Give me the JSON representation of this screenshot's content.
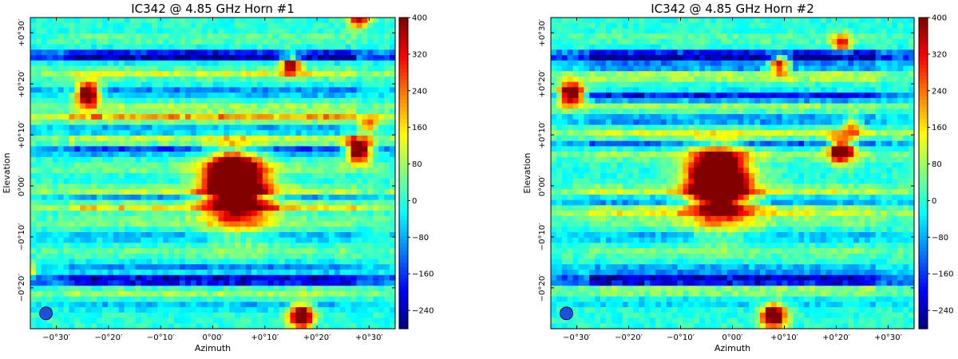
{
  "chart_data": [
    {
      "type": "heatmap",
      "title": "IC342 @ 4.85 GHz  Horn #1",
      "xlabel": "Azimuth",
      "ylabel": "Elevation",
      "x_ticks": [
        "−0°30′",
        "−0°20′",
        "−0°10′",
        "0°00′",
        "+0°10′",
        "+0°20′",
        "+0°30′"
      ],
      "x_tick_values": [
        -30,
        -20,
        -10,
        0,
        10,
        20,
        30
      ],
      "y_ticks": [
        "+0°30′",
        "+0°20′",
        "+0°10′",
        "0°00′",
        "−0°10′",
        "−0°20′"
      ],
      "y_tick_values": [
        30,
        20,
        10,
        0,
        -10,
        -20
      ],
      "xlim": [
        -35,
        35
      ],
      "ylim": [
        -28,
        33
      ],
      "colorbar": {
        "ticks": [
          "400",
          "320",
          "240",
          "160",
          "80",
          "0",
          "−80",
          "−160",
          "−240"
        ],
        "tick_values": [
          400,
          320,
          240,
          160,
          80,
          0,
          -80,
          -160,
          -240
        ],
        "range": [
          -280,
          400
        ],
        "colormap": "jet"
      },
      "grid": {
        "nx": 66,
        "ny": 58
      },
      "stripes": [
        {
          "y": 29,
          "amplitude": 40
        },
        {
          "y": 25.5,
          "amplitude": -320
        },
        {
          "y": 22,
          "amplitude": 120
        },
        {
          "y": 18.5,
          "amplitude": -120
        },
        {
          "y": 15.5,
          "amplitude": 80
        },
        {
          "y": 13.5,
          "amplitude": 200
        },
        {
          "y": 11,
          "amplitude": -90
        },
        {
          "y": 9,
          "amplitude": 120
        },
        {
          "y": 7,
          "amplitude": -160
        },
        {
          "y": 3.5,
          "amplitude": 60
        },
        {
          "y": -1,
          "amplitude": 120
        },
        {
          "y": -2.5,
          "amplitude": -110
        },
        {
          "y": -4,
          "amplitude": 180
        },
        {
          "y": -7,
          "amplitude": 70
        },
        {
          "y": -10,
          "amplitude": -80
        },
        {
          "y": -13,
          "amplitude": 50
        },
        {
          "y": -16,
          "amplitude": -100
        },
        {
          "y": -18.5,
          "amplitude": -300
        },
        {
          "y": -21,
          "amplitude": 90
        },
        {
          "y": -23.5,
          "amplitude": -70
        }
      ],
      "sources": [
        {
          "az": 4,
          "el": 1.5,
          "peak": 650,
          "sigma": 3.6
        },
        {
          "az": 5,
          "el": -3,
          "peak": 300,
          "sigma": 4.5
        },
        {
          "az": -24,
          "el": 18,
          "peak": 600,
          "sigma": 1.6
        },
        {
          "az": 28,
          "el": 7,
          "peak": 600,
          "sigma": 1.6
        },
        {
          "az": 17,
          "el": -25.5,
          "peak": 600,
          "sigma": 1.6
        },
        {
          "az": 15,
          "el": 24,
          "peak": 420,
          "sigma": 1.4
        },
        {
          "az": 30,
          "el": 12,
          "peak": 240,
          "sigma": 1.2
        },
        {
          "az": -36,
          "el": -16.5,
          "peak": 450,
          "sigma": 1.0
        },
        {
          "az": 28,
          "el": 33,
          "peak": 420,
          "sigma": 1.4
        }
      ],
      "beam": {
        "az": -32,
        "el": -25,
        "label": "beam"
      }
    },
    {
      "type": "heatmap",
      "title": "IC342 @ 4.85 GHz  Horn #2",
      "xlabel": "Azimuth",
      "ylabel": "Elevation",
      "x_ticks": [
        "−0°30′",
        "−0°20′",
        "−0°10′",
        "0°00′",
        "+0°10′",
        "+0°20′",
        "+0°30′"
      ],
      "x_tick_values": [
        -30,
        -20,
        -10,
        0,
        10,
        20,
        30
      ],
      "y_ticks": [
        "+0°30′",
        "+0°20′",
        "+0°10′",
        "0°00′",
        "−0°10′",
        "−0°20′"
      ],
      "y_tick_values": [
        30,
        20,
        10,
        0,
        -10,
        -20
      ],
      "xlim": [
        -35,
        35
      ],
      "ylim": [
        -28,
        33
      ],
      "colorbar": {
        "ticks": [
          "400",
          "320",
          "240",
          "160",
          "80",
          "0",
          "−80",
          "−160",
          "−240"
        ],
        "tick_values": [
          400,
          320,
          240,
          160,
          80,
          0,
          -80,
          -160,
          -240
        ],
        "range": [
          -280,
          400
        ],
        "colormap": "jet"
      },
      "grid": {
        "nx": 66,
        "ny": 58
      },
      "stripes": [
        {
          "y": 29,
          "amplitude": 40
        },
        {
          "y": 25.5,
          "amplitude": -320
        },
        {
          "y": 23.5,
          "amplitude": -120
        },
        {
          "y": 21.5,
          "amplitude": 120
        },
        {
          "y": 17.5,
          "amplitude": -200
        },
        {
          "y": 15.5,
          "amplitude": 80
        },
        {
          "y": 13,
          "amplitude": -120
        },
        {
          "y": 10,
          "amplitude": 160
        },
        {
          "y": 8.5,
          "amplitude": -140
        },
        {
          "y": 6,
          "amplitude": 80
        },
        {
          "y": -1,
          "amplitude": 120
        },
        {
          "y": -3,
          "amplitude": -100
        },
        {
          "y": -5,
          "amplitude": 160
        },
        {
          "y": -7,
          "amplitude": 60
        },
        {
          "y": -10,
          "amplitude": -80
        },
        {
          "y": -13,
          "amplitude": 60
        },
        {
          "y": -16.5,
          "amplitude": -110
        },
        {
          "y": -18.5,
          "amplitude": -300
        },
        {
          "y": -20.5,
          "amplitude": 90
        },
        {
          "y": -23,
          "amplitude": -60
        }
      ],
      "sources": [
        {
          "az": -3,
          "el": 2,
          "peak": 650,
          "sigma": 3.6
        },
        {
          "az": -2,
          "el": -2.5,
          "peak": 300,
          "sigma": 4.5
        },
        {
          "az": -31,
          "el": 18,
          "peak": 600,
          "sigma": 1.6
        },
        {
          "az": 21,
          "el": 7,
          "peak": 600,
          "sigma": 1.6
        },
        {
          "az": 8,
          "el": -25.5,
          "peak": 600,
          "sigma": 1.6
        },
        {
          "az": 9,
          "el": 24,
          "peak": 420,
          "sigma": 1.4
        },
        {
          "az": 23,
          "el": 12,
          "peak": 240,
          "sigma": 1.2
        },
        {
          "az": 21,
          "el": 28,
          "peak": 300,
          "sigma": 1.3
        }
      ],
      "beam": {
        "az": -32,
        "el": -25,
        "label": "beam"
      }
    }
  ]
}
